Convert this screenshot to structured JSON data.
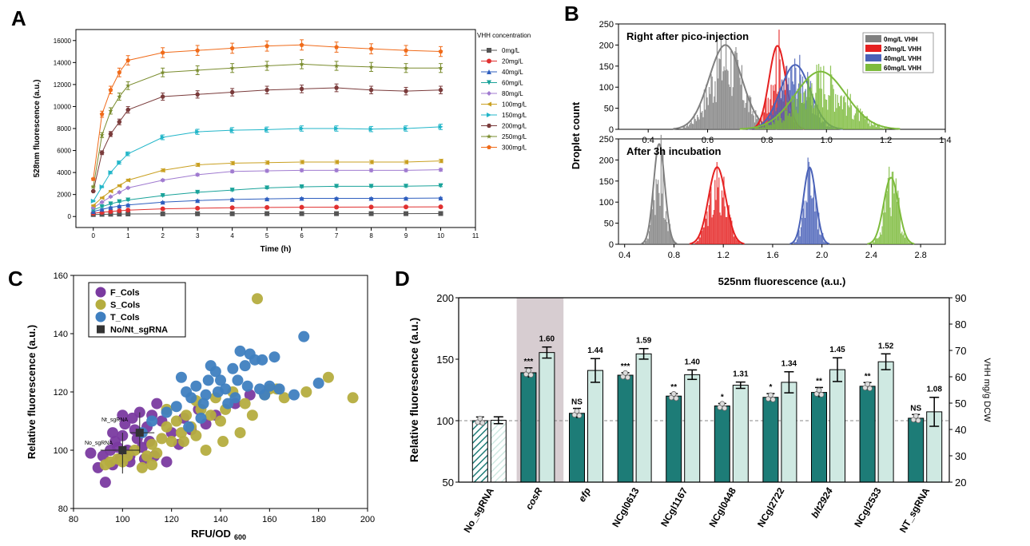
{
  "chart_data": [
    {
      "panel": "A",
      "type": "line",
      "xlabel": "Time (h)",
      "ylabel": "528nm fluorescence (a.u.)",
      "xlim": [
        -0.5,
        11
      ],
      "ylim": [
        -1000,
        17000
      ],
      "xticks": [
        0,
        1,
        2,
        3,
        4,
        5,
        6,
        7,
        8,
        9,
        10,
        11
      ],
      "yticks": [
        0,
        2000,
        4000,
        6000,
        8000,
        10000,
        12000,
        14000,
        16000
      ],
      "legend_title": "VHH concentration",
      "x": [
        0,
        0.25,
        0.5,
        0.75,
        1,
        2,
        3,
        4,
        5,
        6,
        7,
        8,
        9,
        10
      ],
      "series": [
        {
          "name": "0mg/L",
          "color": "#555555",
          "marker": "square",
          "values": [
            180,
            200,
            210,
            220,
            230,
            240,
            250,
            250,
            260,
            260,
            260,
            260,
            260,
            270
          ]
        },
        {
          "name": "20mg/L",
          "color": "#e03030",
          "marker": "circle",
          "values": [
            300,
            380,
            450,
            520,
            580,
            700,
            750,
            800,
            820,
            840,
            850,
            860,
            870,
            880
          ]
        },
        {
          "name": "40mg/L",
          "color": "#2f5fbf",
          "marker": "triangle-up",
          "values": [
            450,
            650,
            820,
            950,
            1050,
            1300,
            1450,
            1550,
            1600,
            1650,
            1650,
            1650,
            1660,
            1680
          ]
        },
        {
          "name": "60mg/L",
          "color": "#1aa39a",
          "marker": "triangle-down",
          "values": [
            600,
            900,
            1150,
            1350,
            1500,
            1900,
            2200,
            2400,
            2600,
            2700,
            2750,
            2750,
            2760,
            2800
          ]
        },
        {
          "name": "80mg/L",
          "color": "#a07bd0",
          "marker": "diamond",
          "values": [
            800,
            1300,
            1800,
            2200,
            2600,
            3300,
            3800,
            4100,
            4150,
            4200,
            4200,
            4200,
            4200,
            4250
          ]
        },
        {
          "name": "100mg/L",
          "color": "#c9a021",
          "marker": "triangle-left",
          "values": [
            1000,
            1700,
            2300,
            2800,
            3300,
            4200,
            4700,
            4850,
            4900,
            4950,
            4950,
            4950,
            4950,
            5050
          ]
        },
        {
          "name": "150mg/L",
          "color": "#22b6c9",
          "marker": "triangle-right",
          "values": [
            1400,
            2700,
            4000,
            4900,
            5700,
            7200,
            7700,
            7850,
            7900,
            8000,
            8000,
            7950,
            8000,
            8150
          ]
        },
        {
          "name": "200mg/L",
          "color": "#7a3b3b",
          "marker": "hexagon",
          "values": [
            2300,
            5800,
            7500,
            8600,
            9700,
            10900,
            11100,
            11300,
            11500,
            11600,
            11700,
            11500,
            11400,
            11500
          ]
        },
        {
          "name": "250mg/L",
          "color": "#7a8c2e",
          "marker": "star",
          "values": [
            2700,
            7400,
            9600,
            10900,
            11900,
            13100,
            13300,
            13500,
            13700,
            13850,
            13700,
            13600,
            13500,
            13500
          ]
        },
        {
          "name": "300mg/L",
          "color": "#f06b1a",
          "marker": "pentagon",
          "values": [
            3400,
            9300,
            11500,
            13100,
            14200,
            14900,
            15100,
            15300,
            15500,
            15600,
            15400,
            15250,
            15100,
            15000
          ]
        }
      ]
    },
    {
      "panel": "B",
      "type": "histogram",
      "ylabel": "Droplet count",
      "xlabel": "525nm fluorescence (a.u.)",
      "subplots": [
        {
          "title": "Right after pico-injection",
          "xlim": [
            0.3,
            1.4
          ],
          "ylim": [
            0,
            250
          ],
          "xticks": [
            0.4,
            0.6,
            0.8,
            1.0,
            1.2,
            1.4
          ],
          "yticks": [
            0,
            50,
            100,
            150,
            200,
            250
          ],
          "series": [
            {
              "name": "0mg/L VHH",
              "color": "#808080",
              "mean": 0.66,
              "sd": 0.055,
              "peak": 200
            },
            {
              "name": "20mg/L VHH",
              "color": "#e52020",
              "mean": 0.835,
              "sd": 0.028,
              "peak": 198
            },
            {
              "name": "40mg/L VHH",
              "color": "#4a62b8",
              "mean": 0.895,
              "sd": 0.05,
              "peak": 153
            },
            {
              "name": "60mg/L VHH",
              "color": "#7dbb3c",
              "mean": 0.98,
              "sd": 0.085,
              "peak": 137
            }
          ]
        },
        {
          "title": "After 3h incubation",
          "xlim": [
            0.35,
            3.0
          ],
          "ylim": [
            0,
            250
          ],
          "xticks": [
            0.4,
            0.8,
            1.2,
            1.6,
            2.0,
            2.4,
            2.8
          ],
          "yticks": [
            0,
            50,
            100,
            150,
            200,
            250
          ],
          "series": [
            {
              "name": "0mg/L VHH",
              "color": "#808080",
              "mean": 0.68,
              "sd": 0.045,
              "peak": 238
            },
            {
              "name": "20mg/L VHH",
              "color": "#e52020",
              "mean": 1.15,
              "sd": 0.07,
              "peak": 183
            },
            {
              "name": "40mg/L VHH",
              "color": "#4a62b8",
              "mean": 1.9,
              "sd": 0.05,
              "peak": 182
            },
            {
              "name": "60mg/L VHH",
              "color": "#7dbb3c",
              "mean": 2.56,
              "sd": 0.06,
              "peak": 158
            }
          ]
        }
      ]
    },
    {
      "panel": "C",
      "type": "scatter",
      "xlabel": "RFU/OD",
      "xlabel_sub": "600",
      "ylabel": "Relative fluorescence (a.u.)",
      "xlim": [
        80,
        200
      ],
      "ylim": [
        80,
        160
      ],
      "xticks": [
        80,
        100,
        120,
        140,
        160,
        180,
        200
      ],
      "yticks": [
        80,
        100,
        120,
        140,
        160
      ],
      "annotations": [
        "Nt_sgRNA",
        "No_sgRNA"
      ],
      "series": [
        {
          "name": "F_Cols",
          "color": "#7a3aa0",
          "points": [
            [
              87,
              99
            ],
            [
              90,
              94
            ],
            [
              92,
              98
            ],
            [
              93,
              89
            ],
            [
              95,
              100
            ],
            [
              96,
              95
            ],
            [
              97,
              103
            ],
            [
              98,
              101
            ],
            [
              99,
              97
            ],
            [
              100,
              105
            ],
            [
              101,
              109
            ],
            [
              102,
              100
            ],
            [
              103,
              98
            ],
            [
              104,
              111
            ],
            [
              105,
              107
            ],
            [
              106,
              104
            ],
            [
              107,
              113
            ],
            [
              108,
              101
            ],
            [
              109,
              97
            ],
            [
              110,
              108
            ],
            [
              111,
              103
            ],
            [
              112,
              112
            ],
            [
              113,
              98
            ],
            [
              114,
              116
            ],
            [
              116,
              110
            ],
            [
              118,
              96
            ],
            [
              120,
              106
            ],
            [
              123,
              102
            ],
            [
              125,
              111
            ],
            [
              128,
              107
            ],
            [
              131,
              114
            ],
            [
              134,
              109
            ],
            [
              138,
              112
            ],
            [
              146,
              116
            ],
            [
              152,
              119
            ],
            [
              100,
              112
            ],
            [
              96,
              106
            ],
            [
              103,
              96
            ]
          ]
        },
        {
          "name": "S_Cols",
          "color": "#b5ad3f",
          "points": [
            [
              93,
              95
            ],
            [
              95,
              96
            ],
            [
              98,
              97
            ],
            [
              100,
              96
            ],
            [
              102,
              98
            ],
            [
              105,
              100
            ],
            [
              108,
              94
            ],
            [
              110,
              98
            ],
            [
              112,
              102
            ],
            [
              114,
              99
            ],
            [
              116,
              104
            ],
            [
              118,
              108
            ],
            [
              120,
              103
            ],
            [
              122,
              110
            ],
            [
              124,
              106
            ],
            [
              126,
              112
            ],
            [
              128,
              108
            ],
            [
              130,
              105
            ],
            [
              132,
              114
            ],
            [
              134,
              100
            ],
            [
              136,
              112
            ],
            [
              138,
              118
            ],
            [
              140,
              110
            ],
            [
              142,
              114
            ],
            [
              145,
              120
            ],
            [
              148,
              106
            ],
            [
              150,
              116
            ],
            [
              153,
              112
            ],
            [
              155,
              152
            ],
            [
              158,
              119
            ],
            [
              160,
              121
            ],
            [
              163,
              121
            ],
            [
              166,
              118
            ],
            [
              175,
              120
            ],
            [
              184,
              125
            ],
            [
              194,
              118
            ],
            [
              112,
              95
            ],
            [
              125,
              103
            ],
            [
              118,
              114
            ],
            [
              130,
              117
            ],
            [
              141,
              103
            ]
          ]
        },
        {
          "name": "T_Cols",
          "color": "#3f7fc0",
          "points": [
            [
              108,
              106
            ],
            [
              112,
              110
            ],
            [
              118,
              113
            ],
            [
              122,
              115
            ],
            [
              124,
              125
            ],
            [
              126,
              120
            ],
            [
              128,
              118
            ],
            [
              130,
              122
            ],
            [
              132,
              111
            ],
            [
              134,
              119
            ],
            [
              135,
              124
            ],
            [
              136,
              129
            ],
            [
              138,
              127
            ],
            [
              140,
              124
            ],
            [
              142,
              121
            ],
            [
              143,
              116
            ],
            [
              145,
              128
            ],
            [
              147,
              124
            ],
            [
              148,
              134
            ],
            [
              150,
              129
            ],
            [
              152,
              133
            ],
            [
              154,
              131
            ],
            [
              156,
              121
            ],
            [
              158,
              119
            ],
            [
              160,
              122
            ],
            [
              162,
              132
            ],
            [
              164,
              121
            ],
            [
              170,
              119
            ],
            [
              174,
              139
            ],
            [
              180,
              123
            ],
            [
              127,
              108
            ],
            [
              133,
              116
            ],
            [
              139,
              120
            ],
            [
              146,
              118
            ],
            [
              151,
              122
            ],
            [
              157,
              131
            ]
          ]
        },
        {
          "name": "No/Nt_sgRNA",
          "color": "#333333",
          "points": [
            [
              100,
              100
            ],
            [
              107,
              106
            ]
          ],
          "xerr": [
            [
              9,
              7
            ],
            [
              4,
              6
            ]
          ],
          "yerr": [
            [
              8,
              6
            ],
            [
              7,
              7
            ]
          ]
        }
      ]
    },
    {
      "panel": "D",
      "type": "bar",
      "ylabel": "Relative fluorescence (a.u.)",
      "ylabel_right": "VHH mg/g DCW",
      "ylim": [
        50,
        200
      ],
      "yticks": [
        50,
        100,
        150,
        200
      ],
      "ylim_right": [
        20,
        90
      ],
      "yticks_right": [
        20,
        30,
        40,
        50,
        60,
        70,
        80,
        90
      ],
      "reference_line": 100,
      "categories": [
        "No_sgRNA",
        "cosR",
        "efp",
        "NCgl0613",
        "NCgl1167",
        "NCgl0448",
        "NCgl2722",
        "blt2924",
        "NCgl2533",
        "NT_sgRNA"
      ],
      "italic_categories": [
        "cosR",
        "efp",
        "blt2924"
      ],
      "highlight_category": "cosR",
      "series": [
        {
          "name": "Relative fluorescence",
          "color": "#1d7c77",
          "values": [
            100,
            139,
            106,
            137,
            120,
            112,
            119,
            123,
            128,
            102
          ],
          "err": [
            3,
            4,
            4,
            2,
            2,
            2,
            3,
            4,
            3,
            3
          ],
          "significance": [
            "",
            "***",
            "NS",
            "***",
            "**",
            "*",
            "*",
            "**",
            "**",
            "NS"
          ]
        },
        {
          "name": "VHH mg/g DCW",
          "color": "#cfe9e2",
          "values": [
            43.5,
            69.2,
            62.4,
            68.7,
            60.8,
            56.8,
            57.9,
            62.7,
            65.7,
            46.7
          ],
          "err": [
            1.3,
            2.1,
            4.5,
            2.0,
            1.8,
            1.2,
            4.0,
            4.5,
            3.0,
            5.5
          ],
          "fold": [
            "",
            "1.60",
            "1.44",
            "1.59",
            "1.40",
            "1.31",
            "1.34",
            "1.45",
            "1.52",
            "1.08"
          ]
        }
      ]
    }
  ],
  "panel_labels": [
    "A",
    "B",
    "C",
    "D"
  ]
}
